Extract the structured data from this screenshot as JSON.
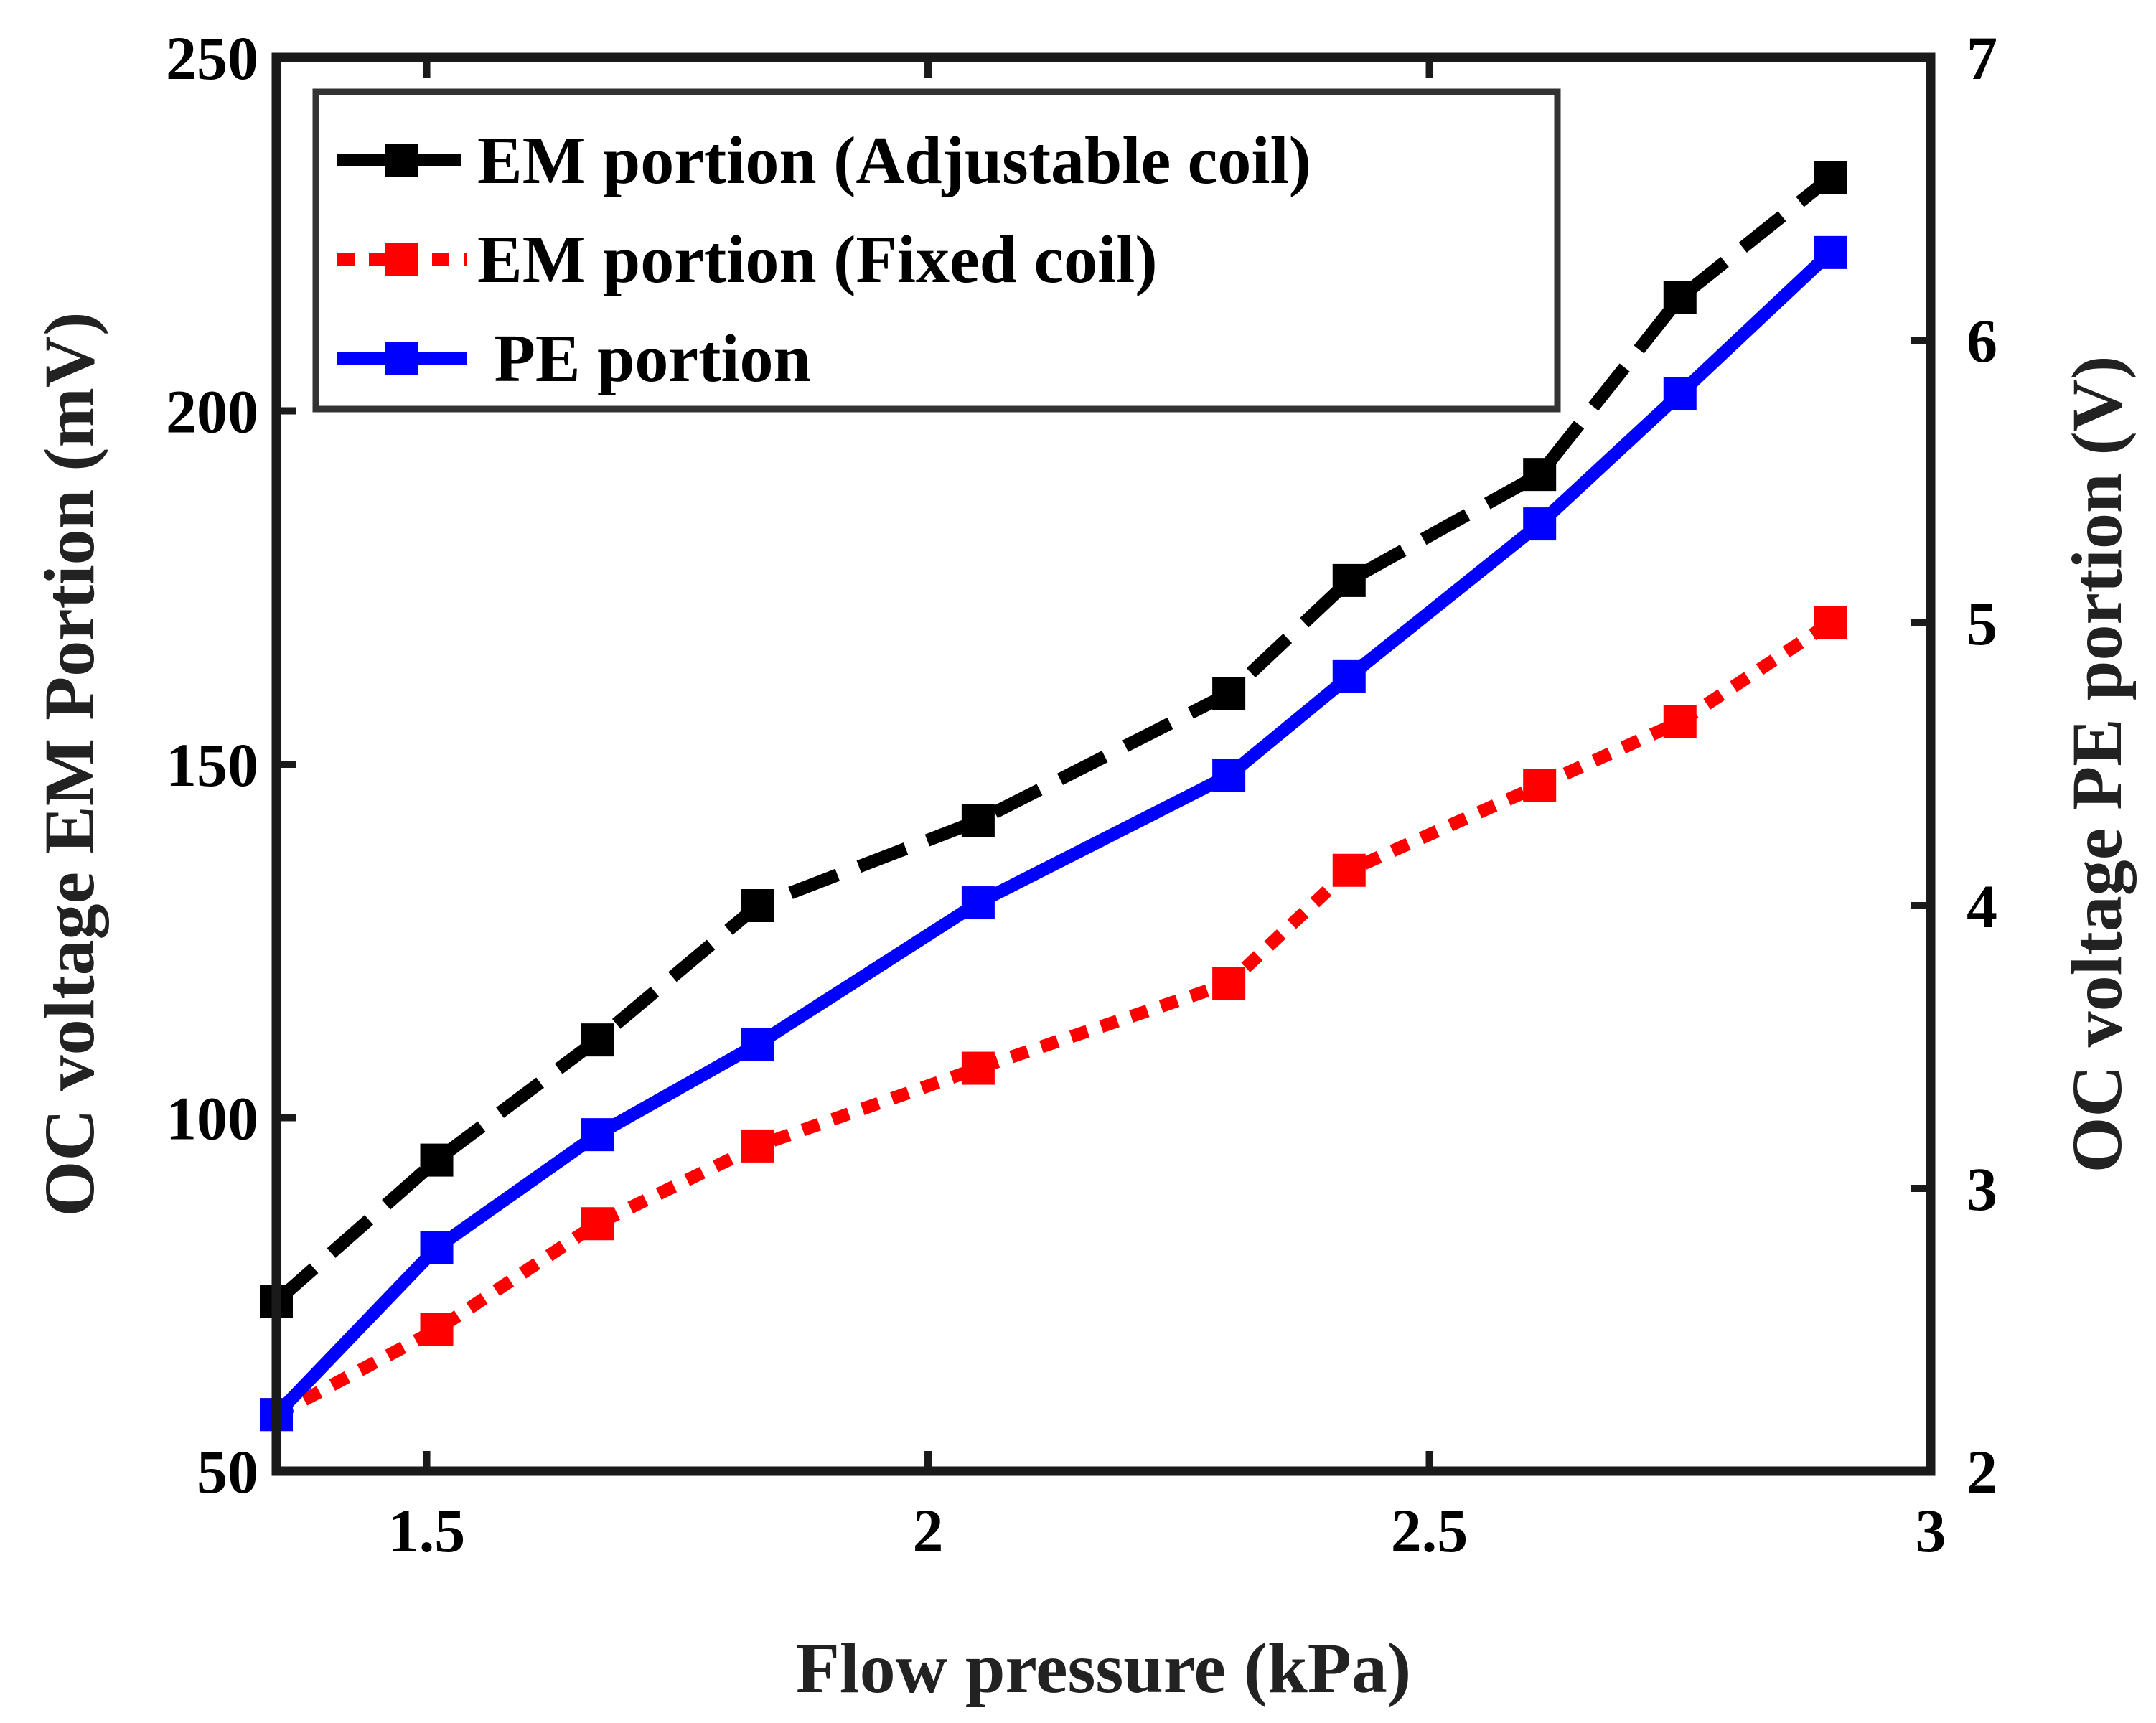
{
  "chart_data": {
    "type": "line",
    "title": "",
    "xlabel": "Flow pressure (kPa)",
    "ylabel_left": "OC voltage EM Portion (mV)",
    "ylabel_right": "OC voltage PE portion (V)",
    "xlim": [
      1.35,
      3
    ],
    "ylim_left": [
      50,
      250
    ],
    "ylim_right": [
      2,
      7
    ],
    "xticks": [
      1.5,
      2,
      2.5,
      3
    ],
    "xtick_labels": [
      "1.5",
      "2",
      "2.5",
      "3"
    ],
    "yticks_left": [
      50,
      100,
      150,
      200,
      250
    ],
    "ytick_labels_left": [
      "50",
      "100",
      "150",
      "200",
      "250"
    ],
    "yticks_right": [
      2,
      3,
      4,
      5,
      6,
      7
    ],
    "ytick_labels_right": [
      "2",
      "3",
      "4",
      "5",
      "6",
      "7"
    ],
    "grid": false,
    "legend_position": "top-left",
    "series": [
      {
        "name": "EM portion (Adjustable coil)",
        "axis": "left",
        "color": "#000000",
        "style": "dashed",
        "marker": "square",
        "x": [
          1.35,
          1.51,
          1.67,
          1.83,
          2.05,
          2.3,
          2.42,
          2.61,
          2.75,
          2.9
        ],
        "values": [
          74,
          94,
          111,
          130,
          142,
          160,
          176,
          191,
          216,
          233
        ]
      },
      {
        "name": "EM portion (Fixed coil)",
        "axis": "left",
        "color": "#ff0000",
        "style": "dotted",
        "marker": "square",
        "x": [
          1.35,
          1.51,
          1.67,
          1.83,
          2.05,
          2.3,
          2.42,
          2.61,
          2.75,
          2.9
        ],
        "values": [
          58,
          70,
          85,
          96,
          107,
          119,
          135,
          147,
          156,
          170
        ]
      },
      {
        "name": " PE portion",
        "axis": "right",
        "color": "#0000ff",
        "style": "solid",
        "marker": "square",
        "x": [
          1.35,
          1.51,
          1.67,
          1.83,
          2.05,
          2.3,
          2.42,
          2.61,
          2.75,
          2.9
        ],
        "values": [
          2.2,
          2.79,
          3.19,
          3.51,
          4.01,
          4.46,
          4.81,
          5.35,
          5.81,
          6.31
        ]
      }
    ]
  }
}
